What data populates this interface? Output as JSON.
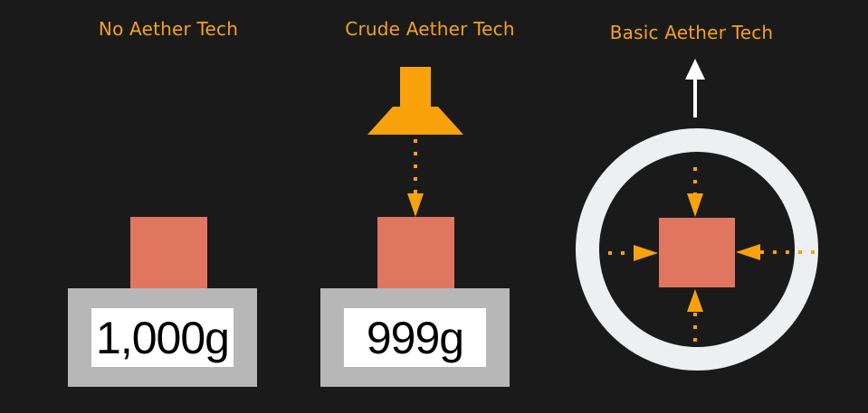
{
  "colors": {
    "background": "#1a1a1a",
    "title": "#f4a21c",
    "weight": "#e07660",
    "scale_base": "#b7b7b7",
    "display_bg": "#ffffff",
    "display_text": "#000000",
    "arrow_orange": "#f9a20b",
    "ring": "#edf0f0",
    "up_arrow": "#ffffff"
  },
  "panels": [
    {
      "title": "No Aether Tech",
      "scale_reading": "1,000g",
      "icons": [
        "weight-block-icon",
        "scale-icon"
      ]
    },
    {
      "title": "Crude Aether Tech",
      "scale_reading": "999g",
      "icons": [
        "lamp-emitter-icon",
        "dotted-arrow-down-icon",
        "weight-block-icon",
        "scale-icon"
      ]
    },
    {
      "title": "Basic Aether Tech",
      "icons": [
        "up-arrow-icon",
        "ring-icon",
        "inward-dotted-arrows-icon",
        "weight-block-icon"
      ]
    }
  ]
}
